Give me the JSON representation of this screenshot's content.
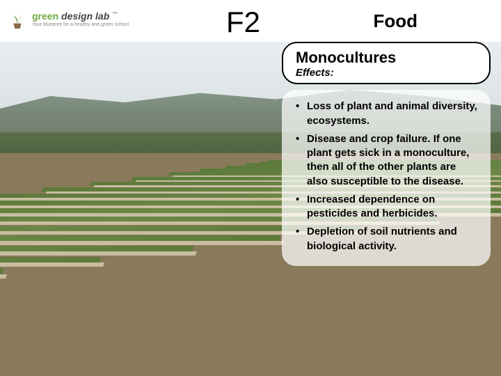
{
  "header": {
    "logo": {
      "brand_green": "green",
      "brand_design": "design lab",
      "tagline": "Your blueprint for a healthy and green school",
      "tm": "™"
    },
    "slide_code": "F2",
    "category": "Food"
  },
  "title": {
    "main": "Monocultures",
    "subtitle": "Effects:"
  },
  "bullets": [
    "Loss of plant and animal diversity, ecosystems.",
    "Disease and crop failure. If one plant gets sick in a monoculture, then all of the other plants are also susceptible to the disease.",
    "Increased dependence on pesticides and herbicides.",
    "Depletion of soil nutrients and biological activity."
  ],
  "colors": {
    "logo_green": "#6fa83e",
    "sky_top": "#e8eef0",
    "hill": "#7a8a7a",
    "field_soil": "#8a7a5c",
    "crop_row": "#5d7a3a",
    "furrow": "#c8bda0",
    "overlay_bg": "rgba(255,255,255,0.72)"
  }
}
